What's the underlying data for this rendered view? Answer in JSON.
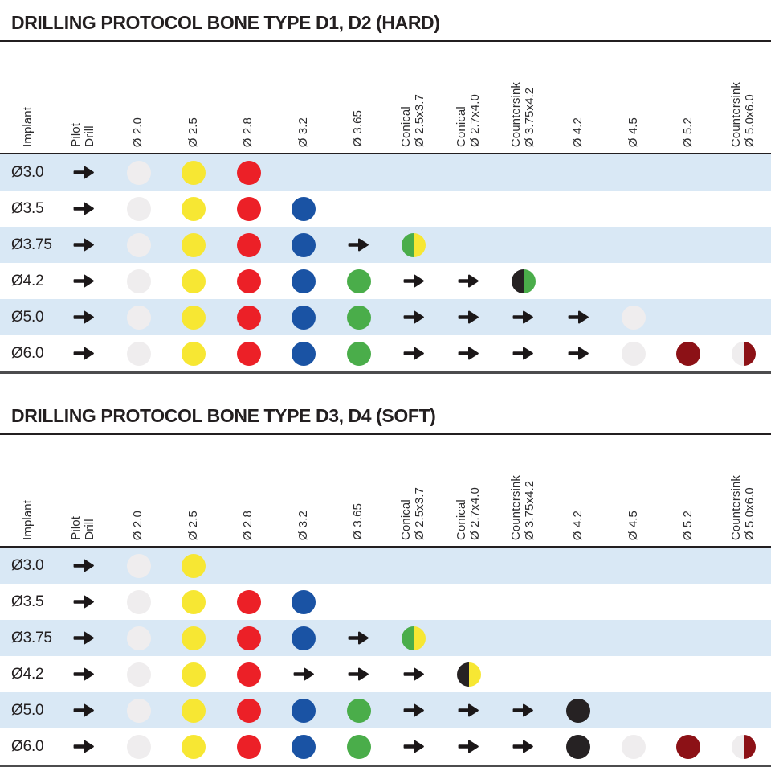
{
  "columns": [
    "Implant",
    "Pilot\nDrill",
    "Ø 2.0",
    "Ø 2.5",
    "Ø 2.8",
    "Ø 3.2",
    "Ø 3.65",
    "Conical\nØ 2.5x3.7",
    "Conical\nØ 2.7x4.0",
    "Countersink\nØ 3.75x4.2",
    "Ø 4.2",
    "Ø 4.5",
    "Ø 5.2",
    "Countersink\nØ 5.0x6.0"
  ],
  "colors": {
    "gray": "#EFEDEE",
    "yellow": "#F7E733",
    "red": "#EC2027",
    "blue": "#1A53A4",
    "green": "#4AAD4A",
    "black": "#262223",
    "maroon": "#8C1116",
    "arrow": "#1B1718",
    "stripe": "#D9E8F5",
    "text": "#231F20"
  },
  "tables": [
    {
      "title": "DRILLING PROTOCOL BONE TYPE D1, D2 (HARD)",
      "rows": [
        {
          "implant": "Ø3.0",
          "cells": [
            "arrow",
            "gray",
            "yellow",
            "red",
            "",
            "",
            "",
            "",
            "",
            "",
            "",
            "",
            ""
          ]
        },
        {
          "implant": "Ø3.5",
          "cells": [
            "arrow",
            "gray",
            "yellow",
            "red",
            "blue",
            "",
            "",
            "",
            "",
            "",
            "",
            "",
            ""
          ]
        },
        {
          "implant": "Ø3.75",
          "cells": [
            "arrow",
            "gray",
            "yellow",
            "red",
            "blue",
            "arrow",
            "green|yellow",
            "",
            "",
            "",
            "",
            "",
            ""
          ]
        },
        {
          "implant": "Ø4.2",
          "cells": [
            "arrow",
            "gray",
            "yellow",
            "red",
            "blue",
            "green",
            "arrow",
            "arrow",
            "black|green",
            "",
            "",
            "",
            ""
          ]
        },
        {
          "implant": "Ø5.0",
          "cells": [
            "arrow",
            "gray",
            "yellow",
            "red",
            "blue",
            "green",
            "arrow",
            "arrow",
            "arrow",
            "arrow",
            "gray",
            "",
            ""
          ]
        },
        {
          "implant": "Ø6.0",
          "cells": [
            "arrow",
            "gray",
            "yellow",
            "red",
            "blue",
            "green",
            "arrow",
            "arrow",
            "arrow",
            "arrow",
            "gray",
            "maroon",
            "gray|maroon"
          ]
        }
      ]
    },
    {
      "title": "DRILLING PROTOCOL BONE TYPE D3, D4 (SOFT)",
      "rows": [
        {
          "implant": "Ø3.0",
          "cells": [
            "arrow",
            "gray",
            "yellow",
            "",
            "",
            "",
            "",
            "",
            "",
            "",
            "",
            "",
            ""
          ]
        },
        {
          "implant": "Ø3.5",
          "cells": [
            "arrow",
            "gray",
            "yellow",
            "red",
            "blue",
            "",
            "",
            "",
            "",
            "",
            "",
            "",
            ""
          ]
        },
        {
          "implant": "Ø3.75",
          "cells": [
            "arrow",
            "gray",
            "yellow",
            "red",
            "blue",
            "arrow",
            "green|yellow",
            "",
            "",
            "",
            "",
            "",
            ""
          ]
        },
        {
          "implant": "Ø4.2",
          "cells": [
            "arrow",
            "gray",
            "yellow",
            "red",
            "arrow",
            "arrow",
            "arrow",
            "black|yellow",
            "",
            "",
            "",
            "",
            ""
          ]
        },
        {
          "implant": "Ø5.0",
          "cells": [
            "arrow",
            "gray",
            "yellow",
            "red",
            "blue",
            "green",
            "arrow",
            "arrow",
            "arrow",
            "black",
            "",
            "",
            ""
          ]
        },
        {
          "implant": "Ø6.0",
          "cells": [
            "arrow",
            "gray",
            "yellow",
            "red",
            "blue",
            "green",
            "arrow",
            "arrow",
            "arrow",
            "black",
            "gray",
            "maroon",
            "gray|maroon"
          ]
        }
      ]
    }
  ]
}
